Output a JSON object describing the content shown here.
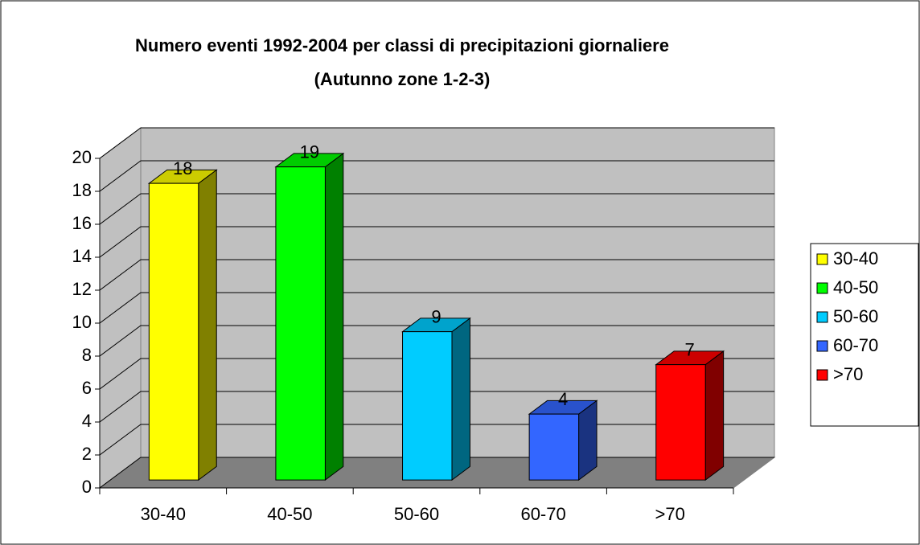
{
  "chart_data": {
    "type": "bar3d",
    "title": "Numero eventi 1992-2004 per classi di precipitazioni giornaliere",
    "subtitle": "(Autunno zone 1-2-3)",
    "categories": [
      "30-40",
      "40-50",
      "50-60",
      "60-70",
      ">70"
    ],
    "values": [
      18,
      19,
      9,
      4,
      7
    ],
    "colors": [
      "#ffff00",
      "#00ff00",
      "#00ccff",
      "#3366ff",
      "#ff0000"
    ],
    "ylim": [
      0,
      20
    ],
    "yticks": [
      0,
      2,
      4,
      6,
      8,
      10,
      12,
      14,
      16,
      18,
      20
    ],
    "grid": true,
    "legend": "right"
  }
}
